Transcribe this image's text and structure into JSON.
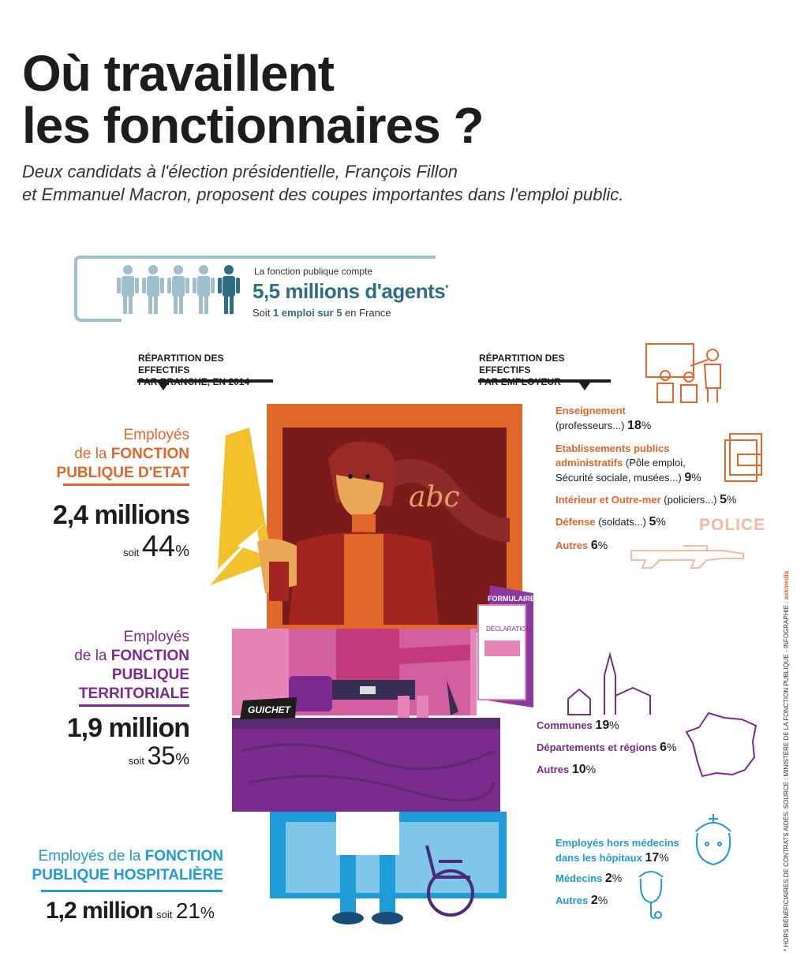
{
  "title_line1": "Où travaillent",
  "title_line2": "les fonctionnaires ?",
  "subtitle_line1": "Deux candidats à l'élection présidentielle, François Fillon",
  "subtitle_line2": "et Emmanuel Macron, proposent des coupes importantes dans l'emploi public.",
  "total": {
    "intro": "La fonction publique compte",
    "value": "5,5 millions d'agents",
    "asterisk": "*",
    "ratio_pre": "Soit",
    "ratio_bold": "1 emploi sur 5",
    "ratio_post": "en France"
  },
  "left_header": [
    "RÉPARTITION DES EFFECTIFS",
    "PAR BRANCHE, EN 2014"
  ],
  "right_header": [
    "RÉPARTITION DES EFFECTIFS",
    "PAR EMPLOYEUR"
  ],
  "illustration": {
    "board_text": "abc",
    "form_tab": "FORMULAIRE",
    "form_label": "DÉCLARATION",
    "desk_sign": "GUICHET",
    "police": "POLICE"
  },
  "branches": [
    {
      "prefix": "Employés",
      "line2_pre": "de la",
      "line2_bold": "FONCTION",
      "line3": "PUBLIQUE D'ETAT",
      "line4": "",
      "count": "2,4 millions",
      "soit": "soit",
      "pct": "44",
      "pct_sign": "%",
      "color": "#e2672b"
    },
    {
      "prefix": "Employés",
      "line2_pre": "de la",
      "line2_bold": "FONCTION",
      "line3": "PUBLIQUE",
      "line4": "TERRITORIALE",
      "count": "1,9 million",
      "soit": "soit",
      "pct": "35",
      "pct_sign": "%",
      "color": "#7b2a8e"
    },
    {
      "prefix": "Employés de la",
      "line2_pre": "",
      "line2_bold": "FONCTION",
      "line3": "PUBLIQUE HOSPITALIÈRE",
      "line4": "",
      "count": "1,2 million",
      "soit": "soit",
      "pct": "21",
      "pct_sign": "%",
      "color": "#1f9bd7"
    }
  ],
  "employers": {
    "etat": [
      {
        "bold": "Enseignement",
        "rest": "(professeurs...)",
        "value": "18"
      },
      {
        "bold": "Etablissements publics administratifs",
        "rest": "(Pôle emploi, Sécurité sociale, musées...)",
        "value": "9"
      },
      {
        "bold": "Intérieur et Outre-mer",
        "rest": "(policiers...)",
        "value": "5"
      },
      {
        "bold": "Défense",
        "rest": "(soldats...)",
        "value": "5"
      },
      {
        "bold": "Autres",
        "rest": "",
        "value": "6"
      }
    ],
    "territoriale": [
      {
        "bold": "Communes",
        "rest": "",
        "value": "19"
      },
      {
        "bold": "Départements et régions",
        "rest": "",
        "value": "6"
      },
      {
        "bold": "Autres",
        "rest": "",
        "value": "10"
      }
    ],
    "hospitaliere": [
      {
        "bold": "Employés hors médecins dans les hôpitaux",
        "rest": "",
        "value": "17"
      },
      {
        "bold": "Médecins",
        "rest": "",
        "value": "2"
      },
      {
        "bold": "Autres",
        "rest": "",
        "value": "2"
      }
    ],
    "pct_sign": "%"
  },
  "footnote": "* HORS BÉNÉFICIAIRES DE CONTRATS AIDÉS. SOURCE : MINISTÈRE DE LA FONCTION PUBLIQUE - INFOGRAPHIE :",
  "credit": "askmedia",
  "colors": {
    "etat": "#e2672b",
    "territoriale": "#7b2a8e",
    "hospitaliere": "#1f9bd7",
    "dark": "#1d1d1b"
  },
  "chart_data": {
    "type": "table",
    "branches": {
      "categories": [
        "FONCTION PUBLIQUE D'ETAT",
        "FONCTION PUBLIQUE TERRITORIALE",
        "FONCTION PUBLIQUE HOSPITALIÈRE"
      ],
      "counts_millions": [
        2.4,
        1.9,
        1.2
      ],
      "percent": [
        44,
        35,
        21
      ]
    },
    "employers": {
      "categories": [
        "Enseignement",
        "Etablissements publics administratifs",
        "Intérieur et Outre-mer",
        "Défense",
        "Autres",
        "Communes",
        "Départements et régions",
        "Autres",
        "Employés hors médecins dans les hôpitaux",
        "Médecins",
        "Autres"
      ],
      "percent": [
        18,
        9,
        5,
        5,
        6,
        19,
        6,
        10,
        17,
        2,
        2
      ]
    },
    "total_millions": 5.5
  }
}
